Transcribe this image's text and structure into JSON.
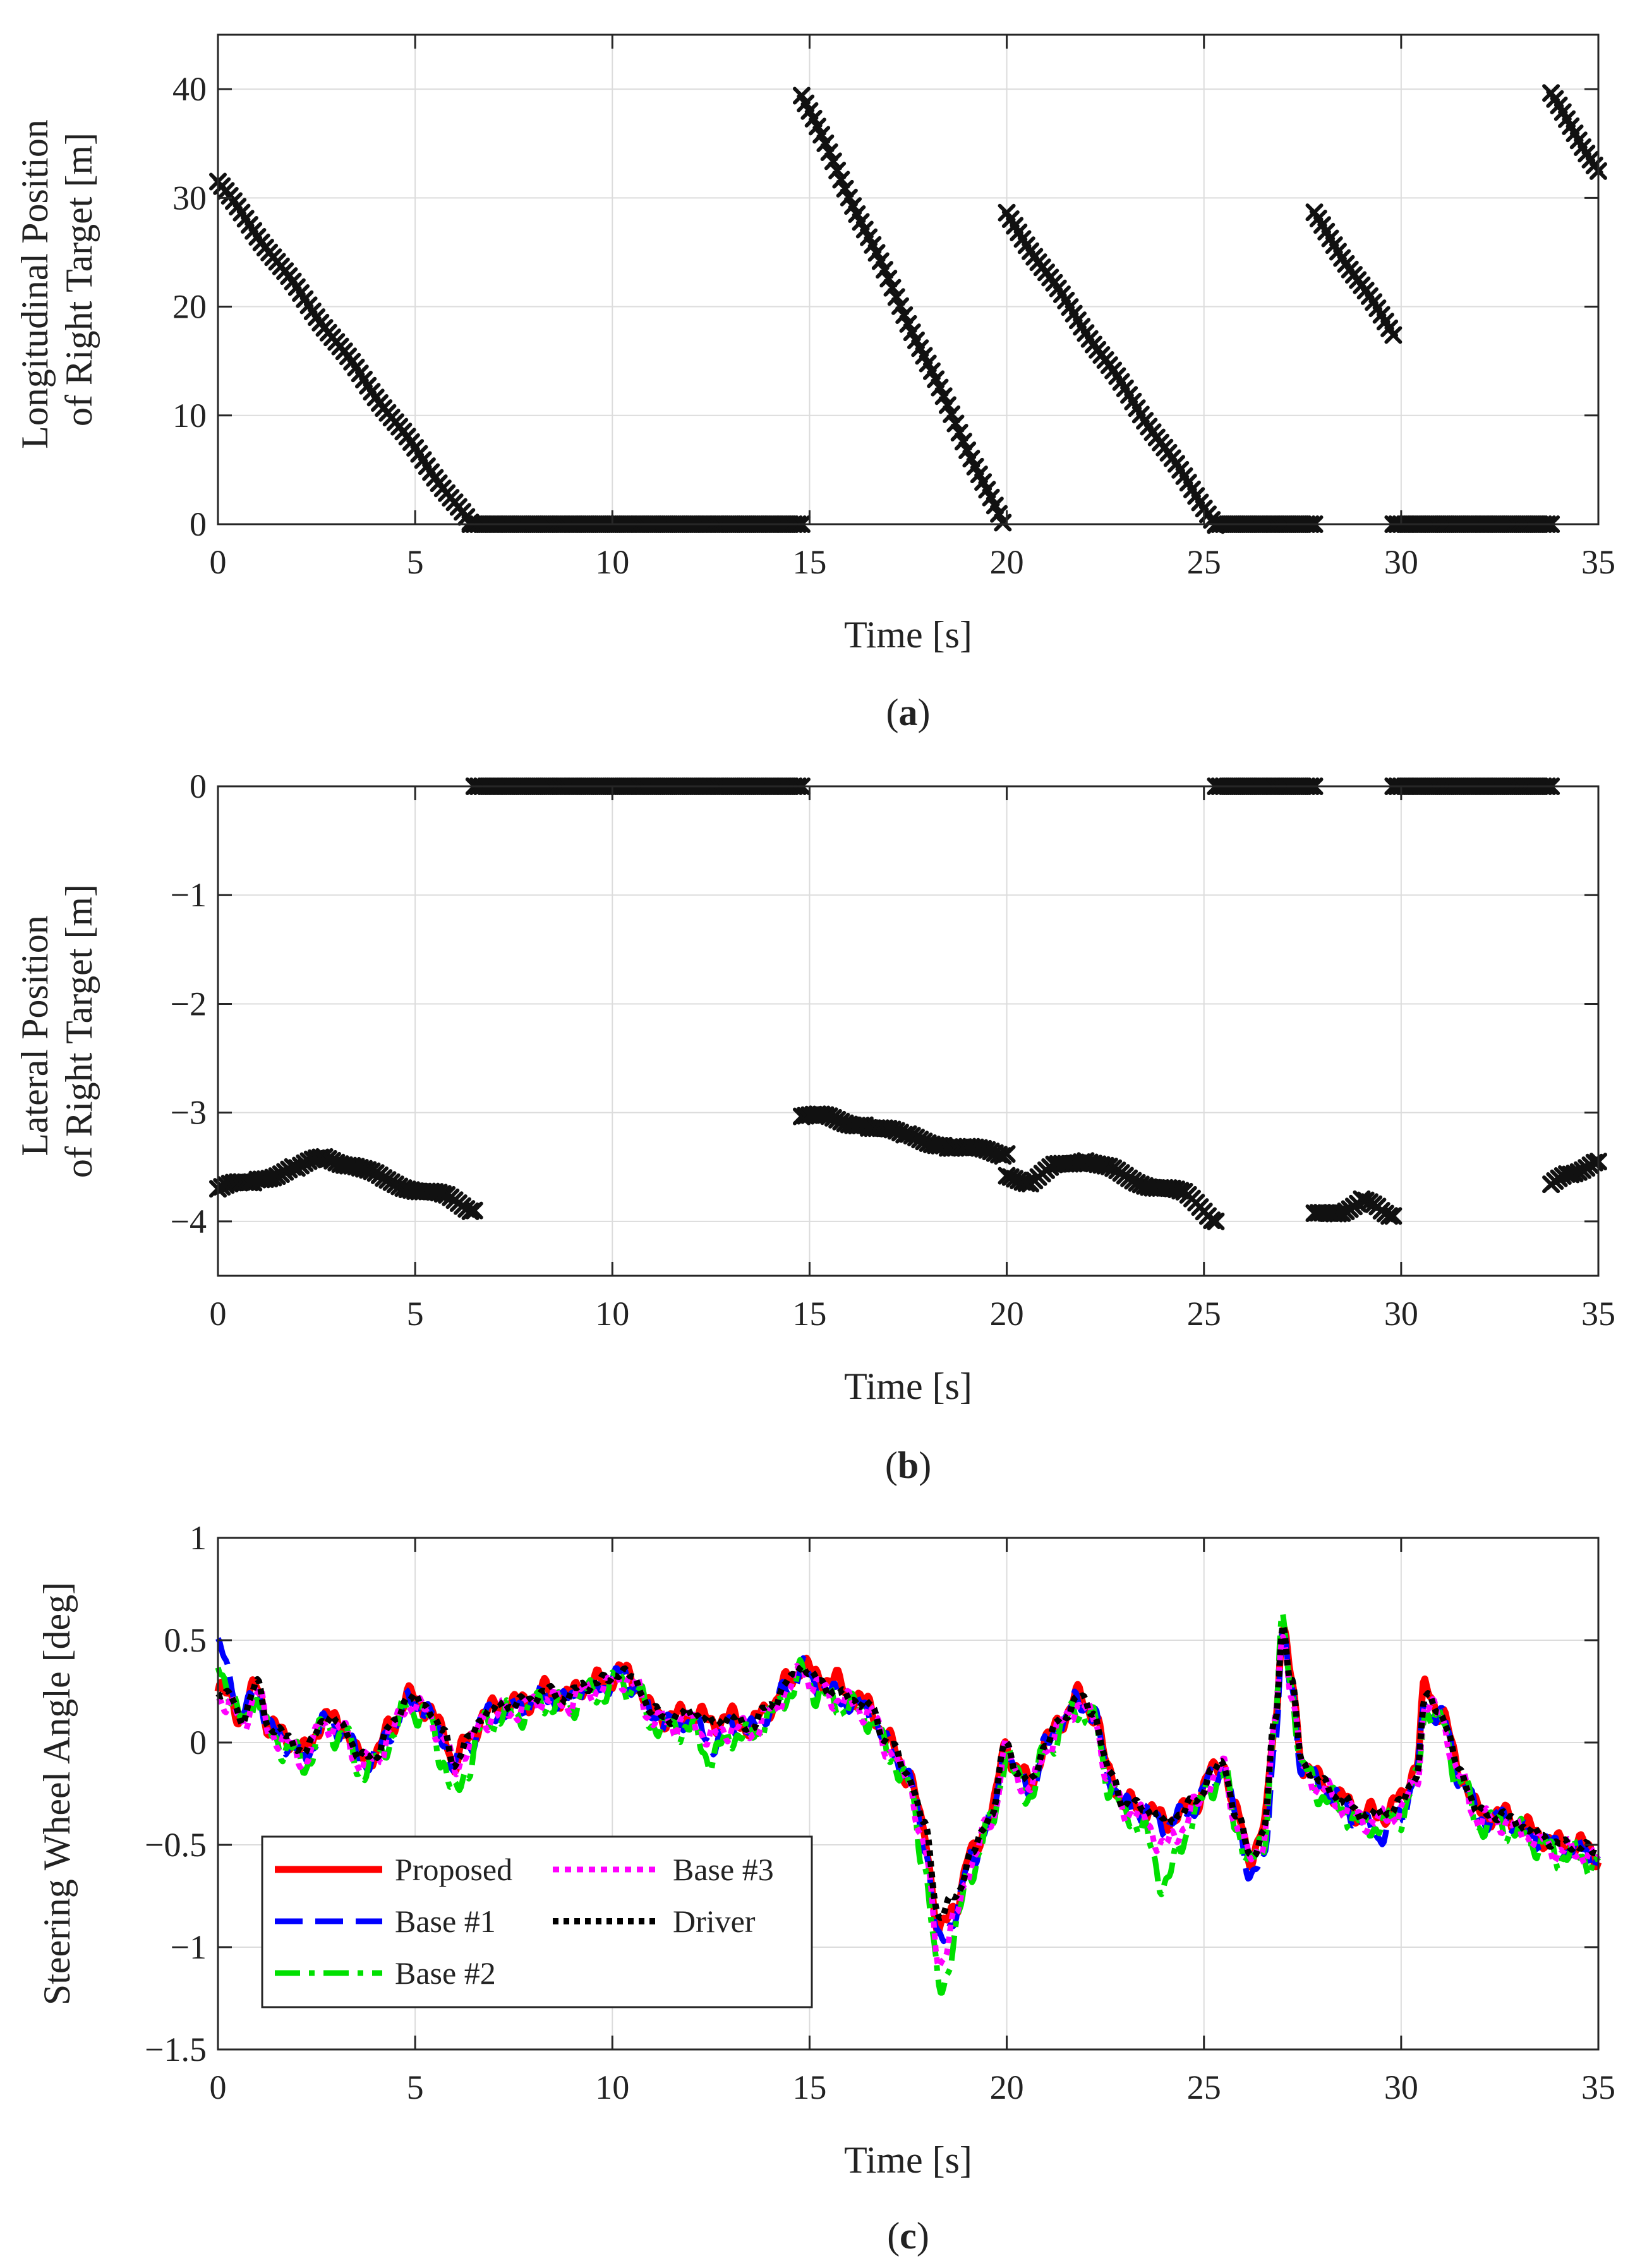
{
  "chart_data": [
    {
      "type": "scatter",
      "caption_open": "(",
      "caption_letter": "a",
      "caption_close": ")",
      "xlabel": "Time [s]",
      "ylabel_lines": [
        "Longitudinal Position",
        "of Right Target [m]"
      ],
      "xlim": [
        0,
        35
      ],
      "ylim": [
        0,
        45
      ],
      "xticks": [
        0,
        5,
        10,
        15,
        20,
        25,
        30,
        35
      ],
      "yticks": [
        0,
        10,
        20,
        30,
        40
      ],
      "grid": true,
      "marker": "x",
      "color": "#111111",
      "segments": [
        {
          "x0": 0.0,
          "x1": 6.4,
          "y0": 31.5,
          "y1": 0.0
        },
        {
          "x0": 6.4,
          "x1": 14.8,
          "y0": 0.0,
          "y1": 0.0
        },
        {
          "x0": 14.8,
          "x1": 19.9,
          "y0": 39.5,
          "y1": 0.0
        },
        {
          "x0": 20.0,
          "x1": 25.3,
          "y0": 28.5,
          "y1": 0.0
        },
        {
          "x0": 25.3,
          "x1": 27.8,
          "y0": 0.0,
          "y1": 0.0
        },
        {
          "x0": 27.8,
          "x1": 29.8,
          "y0": 28.5,
          "y1": 17.5
        },
        {
          "x0": 29.8,
          "x1": 33.8,
          "y0": 0.0,
          "y1": 0.0
        },
        {
          "x0": 33.8,
          "x1": 35.0,
          "y0": 39.5,
          "y1": 32.5
        }
      ]
    },
    {
      "type": "scatter",
      "caption_open": "(",
      "caption_letter": "b",
      "caption_close": ")",
      "xlabel": "Time [s]",
      "ylabel_lines": [
        "Lateral Position",
        "of Right Target [m]"
      ],
      "xlim": [
        0,
        35
      ],
      "ylim": [
        -4.5,
        0
      ],
      "xticks": [
        0,
        5,
        10,
        15,
        20,
        25,
        30,
        35
      ],
      "yticks": [
        0,
        -1,
        -2,
        -3,
        -4
      ],
      "grid": true,
      "marker": "x",
      "color": "#111111",
      "segments": [
        {
          "pts": [
            [
              0.0,
              -3.7
            ],
            [
              1.0,
              -3.62
            ],
            [
              2.0,
              -3.5
            ],
            [
              2.7,
              -3.42
            ],
            [
              3.5,
              -3.48
            ],
            [
              4.2,
              -3.62
            ],
            [
              5.0,
              -3.7
            ],
            [
              5.8,
              -3.78
            ],
            [
              6.5,
              -3.9
            ]
          ]
        },
        {
          "pts": [
            [
              6.5,
              0.0
            ],
            [
              14.8,
              0.0
            ]
          ]
        },
        {
          "pts": [
            [
              14.8,
              -3.02
            ],
            [
              15.5,
              -3.05
            ],
            [
              16.5,
              -3.12
            ],
            [
              17.5,
              -3.22
            ],
            [
              18.5,
              -3.3
            ],
            [
              19.3,
              -3.35
            ],
            [
              20.0,
              -3.38
            ]
          ]
        },
        {
          "pts": [
            [
              20.0,
              -3.6
            ],
            [
              20.6,
              -3.63
            ],
            [
              21.2,
              -3.5
            ],
            [
              22.0,
              -3.42
            ],
            [
              22.6,
              -3.52
            ],
            [
              23.5,
              -3.65
            ],
            [
              24.5,
              -3.75
            ],
            [
              25.3,
              -4.0
            ]
          ]
        },
        {
          "pts": [
            [
              25.3,
              0.0
            ],
            [
              27.8,
              0.0
            ]
          ]
        },
        {
          "pts": [
            [
              27.8,
              -3.95
            ],
            [
              28.5,
              -3.9
            ],
            [
              29.0,
              -3.82
            ],
            [
              29.5,
              -3.88
            ],
            [
              29.8,
              -3.95
            ]
          ]
        },
        {
          "pts": [
            [
              29.8,
              0.0
            ],
            [
              33.8,
              0.0
            ]
          ]
        },
        {
          "pts": [
            [
              33.8,
              -3.68
            ],
            [
              34.3,
              -3.55
            ],
            [
              35.0,
              -3.45
            ]
          ]
        }
      ]
    },
    {
      "type": "line",
      "caption_open": "(",
      "caption_letter": "c",
      "caption_close": ")",
      "xlabel": "Time [s]",
      "ylabel_lines": [
        "Steering Wheel Angle [deg]"
      ],
      "xlim": [
        0,
        35
      ],
      "ylim": [
        -1.5,
        1
      ],
      "xticks": [
        0,
        5,
        10,
        15,
        20,
        25,
        30,
        35
      ],
      "yticks": [
        1,
        0.5,
        0,
        -0.5,
        -1,
        -1.5
      ],
      "ytick_labels": [
        "1",
        "0.5",
        "0",
        "−0.5",
        "−1",
        "−1.5"
      ],
      "grid": true,
      "legend_position": "lower-left",
      "base_x": [
        0,
        0.3,
        0.6,
        1.0,
        1.3,
        1.8,
        2.2,
        2.7,
        3.2,
        3.6,
        4.0,
        4.4,
        4.8,
        5.3,
        5.7,
        6.0,
        6.3,
        6.8,
        7.3,
        7.8,
        8.3,
        8.8,
        9.3,
        9.8,
        10.2,
        10.6,
        11.0,
        11.5,
        12.0,
        12.5,
        13.0,
        13.5,
        14.0,
        14.5,
        14.8,
        15.2,
        15.6,
        16.0,
        16.5,
        17.0,
        17.5,
        17.9,
        18.3,
        18.7,
        19.1,
        19.6,
        20.0,
        20.2,
        20.6,
        21.0,
        21.4,
        21.8,
        22.2,
        22.6,
        23.0,
        23.5,
        24.0,
        24.4,
        24.8,
        25.2,
        25.5,
        25.8,
        26.2,
        26.5,
        26.8,
        27.0,
        27.2,
        27.5,
        28.0,
        28.5,
        29.0,
        29.5,
        30.0,
        30.4,
        30.6,
        31.0,
        31.5,
        32.0,
        32.5,
        33.0,
        33.5,
        34.0,
        34.5,
        35.0
      ],
      "base_y": [
        0.25,
        0.22,
        0.12,
        0.28,
        0.08,
        0.02,
        -0.05,
        0.12,
        0.08,
        -0.08,
        -0.05,
        0.08,
        0.22,
        0.18,
        0.05,
        -0.1,
        0.0,
        0.15,
        0.18,
        0.2,
        0.25,
        0.22,
        0.28,
        0.3,
        0.35,
        0.3,
        0.15,
        0.12,
        0.15,
        0.1,
        0.12,
        0.08,
        0.18,
        0.3,
        0.38,
        0.3,
        0.25,
        0.22,
        0.18,
        0.0,
        -0.15,
        -0.4,
        -0.85,
        -0.75,
        -0.55,
        -0.35,
        0.0,
        -0.12,
        -0.2,
        0.0,
        0.12,
        0.22,
        0.15,
        -0.15,
        -0.3,
        -0.32,
        -0.38,
        -0.35,
        -0.28,
        -0.15,
        -0.1,
        -0.35,
        -0.55,
        -0.45,
        0.1,
        0.58,
        0.3,
        -0.1,
        -0.2,
        -0.28,
        -0.35,
        -0.35,
        -0.3,
        -0.15,
        0.22,
        0.15,
        -0.15,
        -0.35,
        -0.35,
        -0.4,
        -0.45,
        -0.5,
        -0.5,
        -0.55
      ],
      "series": [
        {
          "name": "Proposed",
          "color": "#ff0000",
          "dash": "",
          "width": 11,
          "offset": 0.0,
          "amp": 0.04,
          "phase": 0.0,
          "extra": {
            "18.3": -0.08,
            "30.4": 0.05,
            "15.6": 0.05
          }
        },
        {
          "name": "Base #1",
          "color": "#0000ff",
          "dash": "44,20",
          "width": 9,
          "offset": -0.02,
          "amp": 0.04,
          "phase": 1.1,
          "extra": {
            "0": 0.22,
            "26.5": -0.12,
            "29.5": -0.08,
            "18.3": -0.12,
            "12.5": -0.08
          }
        },
        {
          "name": "Base #2",
          "color": "#00e000",
          "dash": "40,14,9,14",
          "width": 9,
          "offset": -0.05,
          "amp": 0.05,
          "phase": 2.3,
          "extra": {
            "0": 0.15,
            "18.3": -0.3,
            "24.0": -0.25,
            "12.5": -0.12,
            "6.0": -0.12,
            "27.0": 0.05
          }
        },
        {
          "name": "Base #3",
          "color": "#ff00ff",
          "dash": "10,9",
          "width": 9,
          "offset": -0.03,
          "amp": 0.04,
          "phase": 3.7,
          "extra": {
            "18.3": -0.18,
            "24.0": -0.1,
            "12.5": -0.05
          }
        },
        {
          "name": "Driver",
          "color": "#000000",
          "dash": "9,8",
          "width": 10,
          "offset": 0.0,
          "amp": 0.02,
          "phase": 5.1,
          "extra": {}
        }
      ]
    }
  ]
}
